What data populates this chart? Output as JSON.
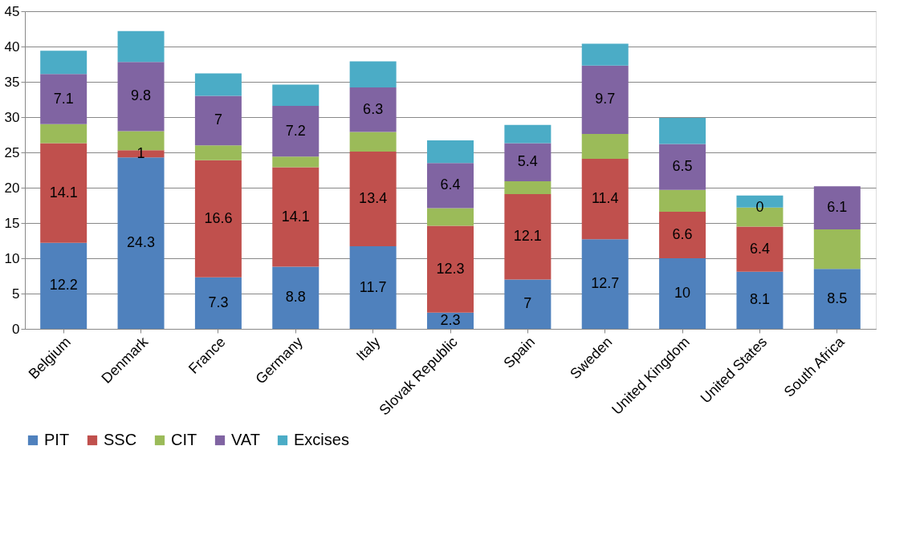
{
  "chart_data": {
    "type": "bar",
    "stacked": true,
    "categories": [
      "Belgium",
      "Denmark",
      "France",
      "Germany",
      "Italy",
      "Slovak Republic",
      "Spain",
      "Sweden",
      "United Kingdom",
      "United States",
      "South Africa"
    ],
    "series": [
      {
        "name": "PIT",
        "color": "#4f81bd",
        "values": [
          12.2,
          24.3,
          7.3,
          8.8,
          11.7,
          2.3,
          7,
          12.7,
          10,
          8.1,
          8.5
        ],
        "value_labels": [
          "12.2",
          "24.3",
          "7.3",
          "8.8",
          "11.7",
          "2.3",
          "7",
          "12.7",
          "10",
          "8.1",
          "8.5"
        ]
      },
      {
        "name": "SSC",
        "color": "#c0504d",
        "values": [
          14.1,
          1,
          16.6,
          14.1,
          13.4,
          12.3,
          12.1,
          11.4,
          6.6,
          6.4,
          null
        ],
        "value_labels": [
          "14.1",
          "1",
          "16.6",
          "14.1",
          "13.4",
          "12.3",
          "12.1",
          "11.4",
          "6.6",
          "6.4",
          null
        ]
      },
      {
        "name": "CIT",
        "color": "#9bbb59",
        "values": [
          2.7,
          2.7,
          2.1,
          1.5,
          2.8,
          2.5,
          1.8,
          3.5,
          3.1,
          2.7,
          5.6
        ]
      },
      {
        "name": "VAT",
        "color": "#8064a2",
        "values": [
          7.1,
          9.8,
          7,
          7.2,
          6.3,
          6.4,
          5.4,
          9.7,
          6.5,
          0,
          6.1
        ],
        "value_labels": [
          "7.1",
          "9.8",
          "7",
          "7.2",
          "6.3",
          "6.4",
          "5.4",
          "9.7",
          "6.5",
          "0",
          "6.1"
        ]
      },
      {
        "name": "Excises",
        "color": "#4bacc6",
        "values": [
          3.3,
          4.4,
          3.2,
          3.0,
          3.7,
          3.2,
          2.6,
          3.1,
          3.7,
          1.7,
          null
        ]
      }
    ],
    "ylim": [
      0,
      45
    ],
    "yticks": [
      0,
      5,
      10,
      15,
      20,
      25,
      30,
      35,
      40,
      45
    ],
    "grid": "y",
    "legend": "bottom"
  }
}
